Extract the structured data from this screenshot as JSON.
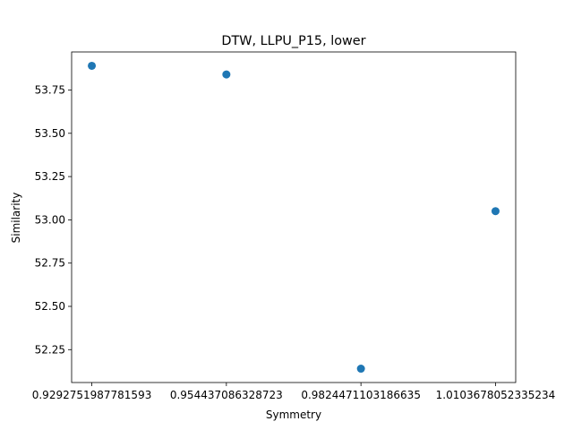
{
  "chart_data": {
    "type": "scatter",
    "title": "DTW, LLPU_P15, lower",
    "xlabel": "Symmetry",
    "ylabel": "Similarity",
    "x_ticks": [
      "0.9292751987781593",
      "0.954437086328723",
      "0.9824471103186635",
      "1.0103678052335234"
    ],
    "y_ticks": [
      52.25,
      52.5,
      52.75,
      53.0,
      53.25,
      53.5,
      53.75
    ],
    "y_tick_labels": [
      "52.25",
      "52.50",
      "52.75",
      "53.00",
      "53.25",
      "53.50",
      "53.75"
    ],
    "ylim": [
      52.06,
      53.97
    ],
    "points": [
      {
        "x": "0.9292751987781593",
        "y": 53.89
      },
      {
        "x": "0.954437086328723",
        "y": 53.84
      },
      {
        "x": "0.9824471103186635",
        "y": 52.14
      },
      {
        "x": "1.0103678052335234",
        "y": 53.05
      }
    ],
    "marker_color": "#1f77b4",
    "grid": false,
    "legend": "none"
  }
}
